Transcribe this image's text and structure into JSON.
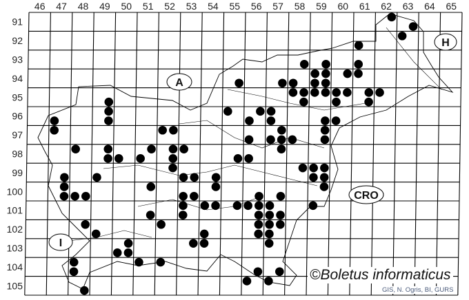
{
  "map": {
    "columns": [
      46,
      47,
      48,
      49,
      50,
      51,
      52,
      53,
      54,
      55,
      56,
      57,
      58,
      59,
      60,
      61,
      62,
      63,
      64,
      65
    ],
    "rows": [
      91,
      92,
      93,
      94,
      95,
      96,
      97,
      98,
      99,
      100,
      101,
      102,
      103,
      104,
      105
    ],
    "country_labels": [
      {
        "id": "A",
        "text": "A"
      },
      {
        "id": "H",
        "text": "H"
      },
      {
        "id": "CRO",
        "text": "CRO"
      },
      {
        "id": "I",
        "text": "I"
      }
    ],
    "dot_color": "#000000",
    "records": [
      [
        62.75,
        91.25
      ],
      [
        63.75,
        91.75
      ],
      [
        63.25,
        92.25
      ],
      [
        61.25,
        92.75
      ],
      [
        58.75,
        93.75
      ],
      [
        59.75,
        93.75
      ],
      [
        61.25,
        93.75
      ],
      [
        59.25,
        94.25
      ],
      [
        59.75,
        94.25
      ],
      [
        60.75,
        94.25
      ],
      [
        61.25,
        94.25
      ],
      [
        55.75,
        94.75
      ],
      [
        57.75,
        94.75
      ],
      [
        58.25,
        94.75
      ],
      [
        59.25,
        94.75
      ],
      [
        59.75,
        94.75
      ],
      [
        58.25,
        95.25
      ],
      [
        58.75,
        95.25
      ],
      [
        59.25,
        95.25
      ],
      [
        59.75,
        95.25
      ],
      [
        60.25,
        95.25
      ],
      [
        60.75,
        95.25
      ],
      [
        61.75,
        95.25
      ],
      [
        62.25,
        95.25
      ],
      [
        49.75,
        95.75
      ],
      [
        58.75,
        95.75
      ],
      [
        60.25,
        95.75
      ],
      [
        61.75,
        95.75
      ],
      [
        49.75,
        96.25
      ],
      [
        55.25,
        96.25
      ],
      [
        56.75,
        96.25
      ],
      [
        57.25,
        96.25
      ],
      [
        47.25,
        96.75
      ],
      [
        49.75,
        96.75
      ],
      [
        56.25,
        96.75
      ],
      [
        57.25,
        96.75
      ],
      [
        59.75,
        96.75
      ],
      [
        60.25,
        96.75
      ],
      [
        47.25,
        97.25
      ],
      [
        52.25,
        97.25
      ],
      [
        52.75,
        97.25
      ],
      [
        57.75,
        97.25
      ],
      [
        59.75,
        97.25
      ],
      [
        56.25,
        97.75
      ],
      [
        57.25,
        97.75
      ],
      [
        57.75,
        97.75
      ],
      [
        58.25,
        97.75
      ],
      [
        59.75,
        97.75
      ],
      [
        48.25,
        98.25
      ],
      [
        49.75,
        98.25
      ],
      [
        51.75,
        98.25
      ],
      [
        52.75,
        98.25
      ],
      [
        53.25,
        98.25
      ],
      [
        57.75,
        98.25
      ],
      [
        49.75,
        98.75
      ],
      [
        50.25,
        98.75
      ],
      [
        51.25,
        98.75
      ],
      [
        52.75,
        98.75
      ],
      [
        55.75,
        98.75
      ],
      [
        56.25,
        98.75
      ],
      [
        52.75,
        99.25
      ],
      [
        58.75,
        99.25
      ],
      [
        59.25,
        99.25
      ],
      [
        59.75,
        99.25
      ],
      [
        47.75,
        99.75
      ],
      [
        49.25,
        99.75
      ],
      [
        53.25,
        99.75
      ],
      [
        53.75,
        99.75
      ],
      [
        54.75,
        99.75
      ],
      [
        59.25,
        99.75
      ],
      [
        59.75,
        99.75
      ],
      [
        47.75,
        100.25
      ],
      [
        51.75,
        100.25
      ],
      [
        54.75,
        100.25
      ],
      [
        59.75,
        100.25
      ],
      [
        47.75,
        100.75
      ],
      [
        48.25,
        100.75
      ],
      [
        48.75,
        100.75
      ],
      [
        53.25,
        100.75
      ],
      [
        53.75,
        100.75
      ],
      [
        56.75,
        100.75
      ],
      [
        57.75,
        100.75
      ],
      [
        53.25,
        101.25
      ],
      [
        54.25,
        101.25
      ],
      [
        54.75,
        101.25
      ],
      [
        55.75,
        101.25
      ],
      [
        56.25,
        101.25
      ],
      [
        56.75,
        101.25
      ],
      [
        57.25,
        101.25
      ],
      [
        59.25,
        101.25
      ],
      [
        51.75,
        101.75
      ],
      [
        53.25,
        101.75
      ],
      [
        56.75,
        101.75
      ],
      [
        57.25,
        101.75
      ],
      [
        57.75,
        101.75
      ],
      [
        48.75,
        102.25
      ],
      [
        52.25,
        102.25
      ],
      [
        56.75,
        102.25
      ],
      [
        57.25,
        102.25
      ],
      [
        57.75,
        102.25
      ],
      [
        49.25,
        102.75
      ],
      [
        54.25,
        102.75
      ],
      [
        56.75,
        102.75
      ],
      [
        57.25,
        102.75
      ],
      [
        50.75,
        103.25
      ],
      [
        53.75,
        103.25
      ],
      [
        54.25,
        103.25
      ],
      [
        57.25,
        103.25
      ],
      [
        50.25,
        103.75
      ],
      [
        50.75,
        103.75
      ],
      [
        48.25,
        104.25
      ],
      [
        51.25,
        104.25
      ],
      [
        52.25,
        104.25
      ],
      [
        48.25,
        104.75
      ],
      [
        56.75,
        104.75
      ],
      [
        57.75,
        104.75
      ],
      [
        56.25,
        105.25
      ],
      [
        57.25,
        105.25
      ],
      [
        48.75,
        105.75
      ]
    ]
  },
  "copyright": "©Boletus informaticus",
  "credit": "GIS, N. Ogris, BI, GURS"
}
